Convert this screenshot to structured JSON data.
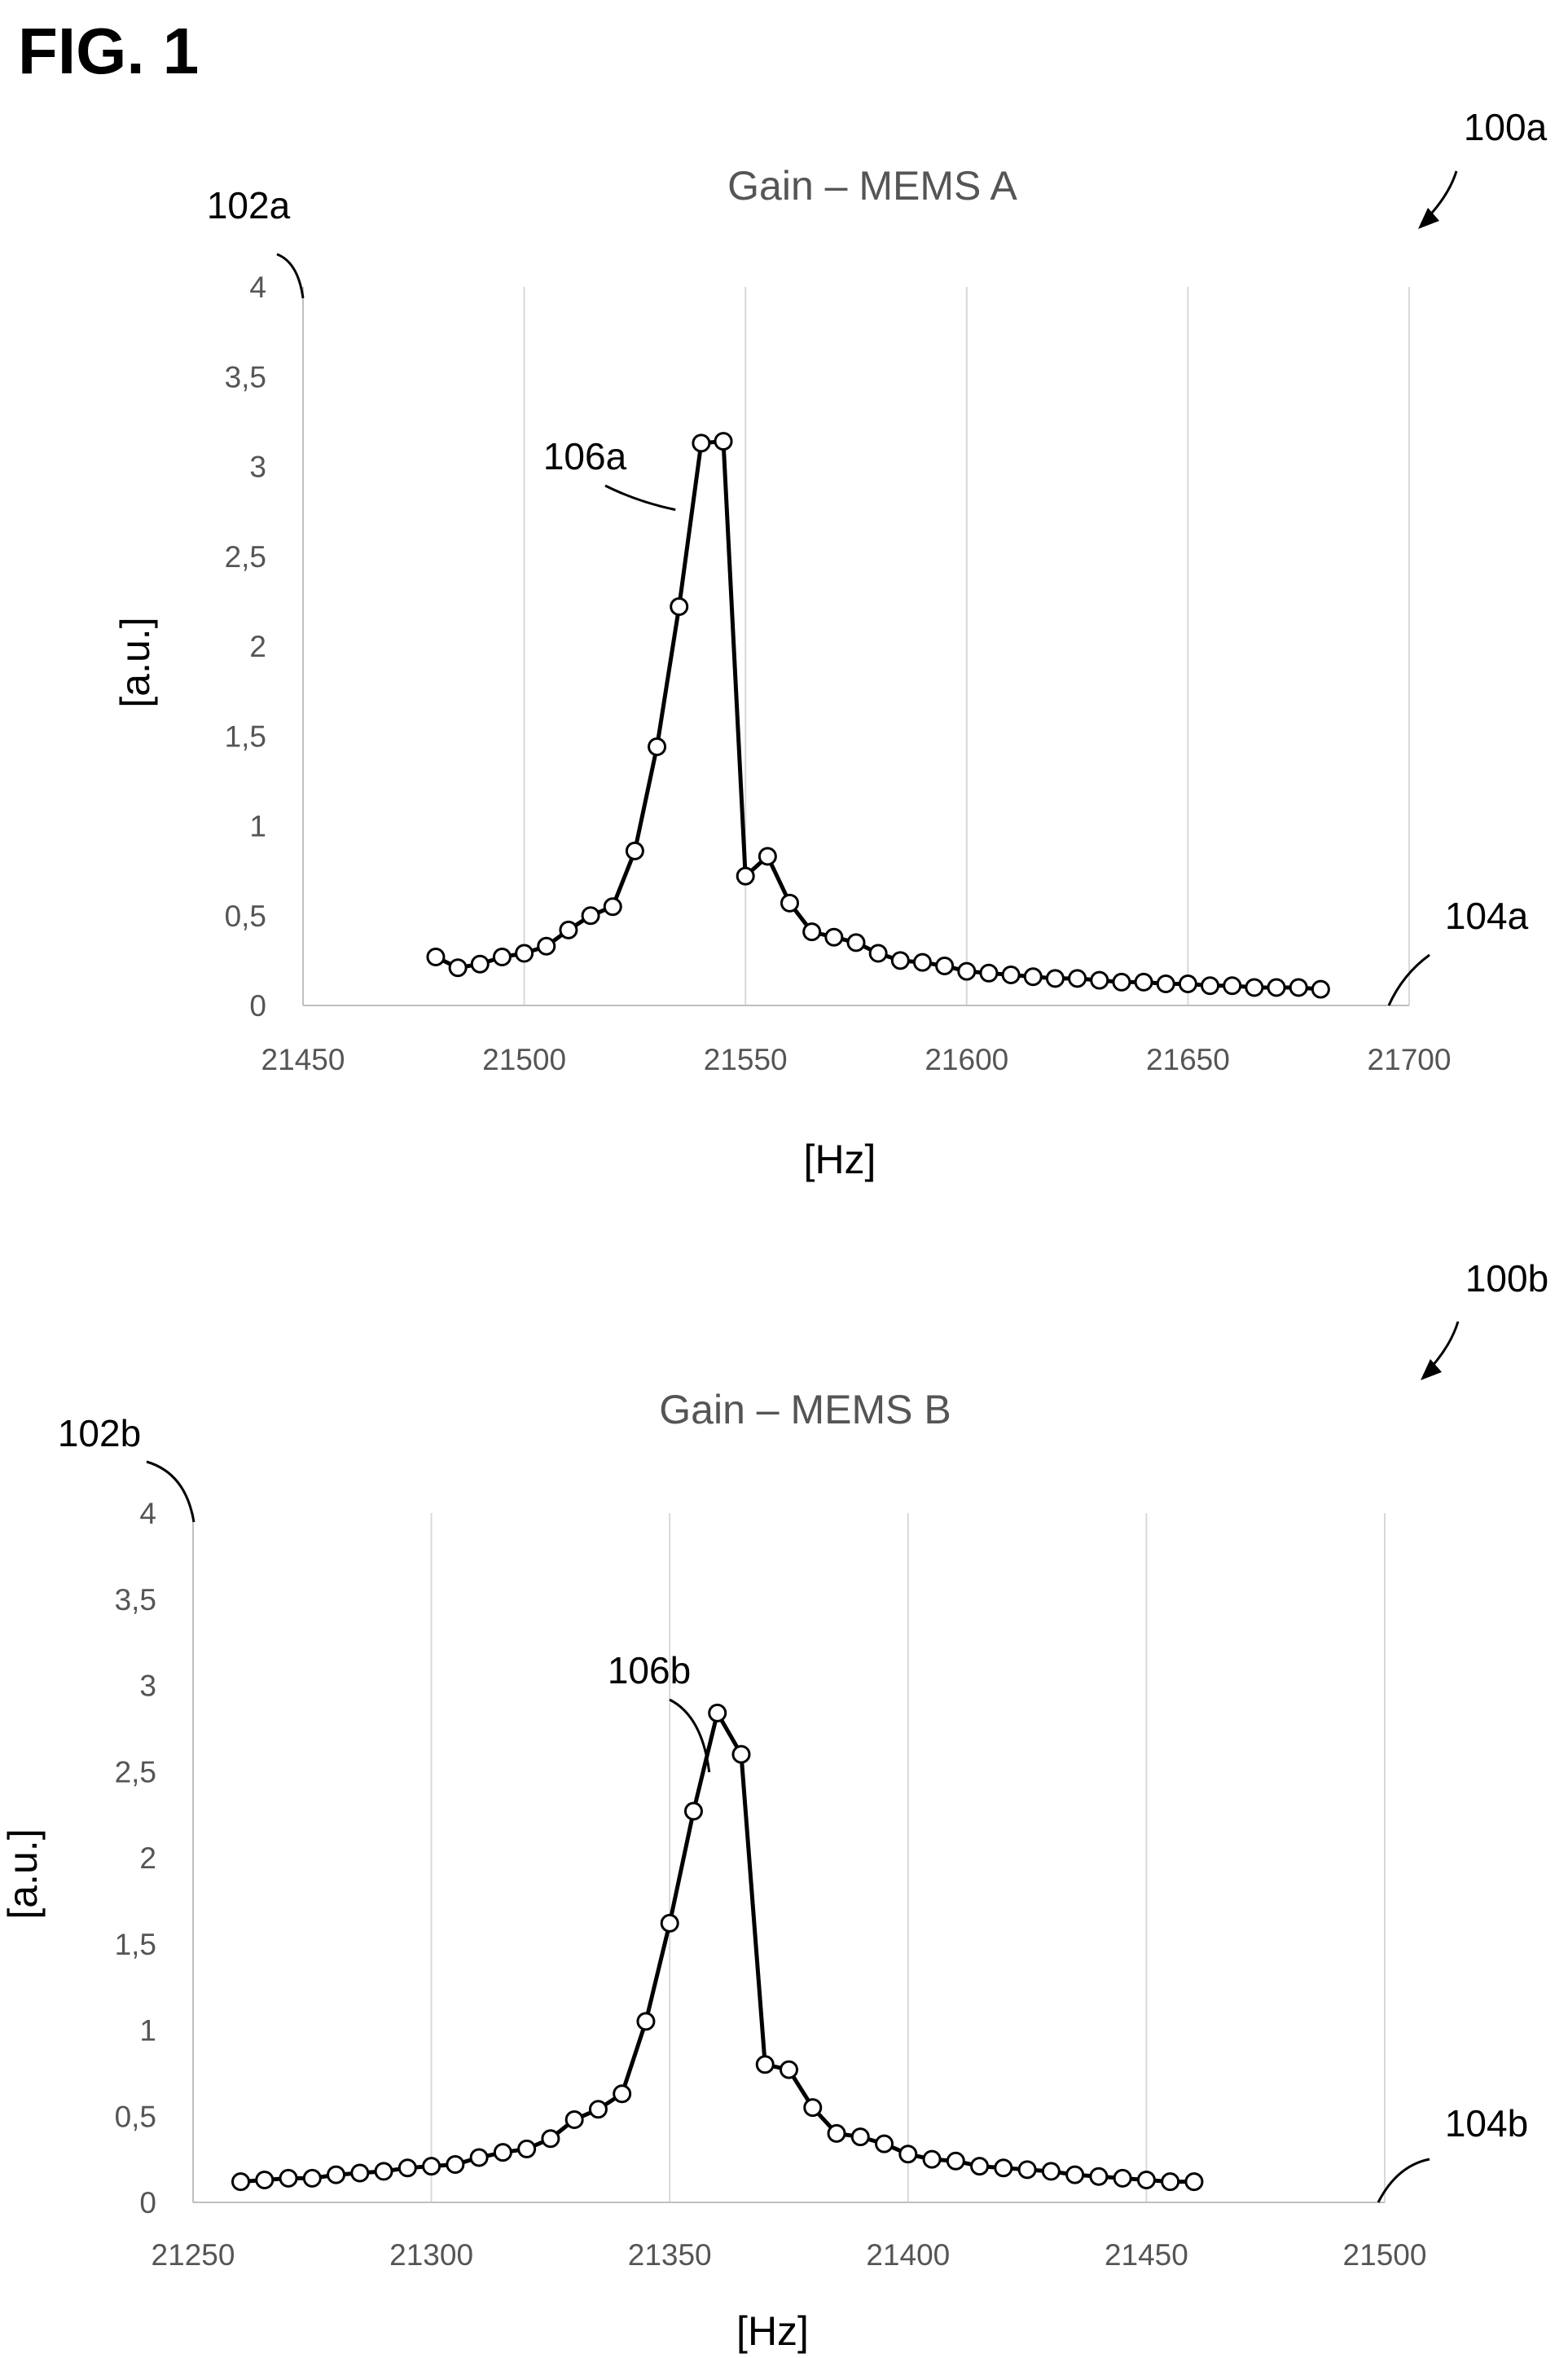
{
  "figure_label": "FIG. 1",
  "chart_data": [
    {
      "type": "line",
      "title": "Gain – MEMS A",
      "xlabel": "[Hz]",
      "ylabel": "[a.u.]",
      "xlim": [
        21450,
        21700
      ],
      "ylim": [
        0,
        4
      ],
      "x_ticks": [
        "21450",
        "21500",
        "21550",
        "21600",
        "21650",
        "21700"
      ],
      "y_ticks": [
        "0",
        "0,5",
        "1",
        "1,5",
        "2",
        "2,5",
        "3",
        "3,5",
        "4"
      ],
      "grid": "vertical",
      "marker": "open-circle",
      "refs": {
        "figure": "100a",
        "y_axis": "102a",
        "x_axis": "104a",
        "curve": "106a"
      },
      "series": [
        {
          "x": [
            21480,
            21485,
            21490,
            21495,
            21500,
            21505,
            21510,
            21515,
            21520,
            21525,
            21530,
            21535,
            21540,
            21545,
            21550,
            21555,
            21560,
            21565,
            21570,
            21575,
            21580,
            21585,
            21590,
            21595,
            21600,
            21605,
            21610,
            21615,
            21620,
            21625,
            21630,
            21635,
            21640,
            21645,
            21650,
            21655,
            21660,
            21665,
            21670,
            21675,
            21680
          ],
          "values": [
            0.27,
            0.21,
            0.23,
            0.27,
            0.29,
            0.33,
            0.42,
            0.5,
            0.55,
            0.86,
            1.44,
            2.22,
            3.13,
            3.14,
            0.72,
            0.83,
            0.57,
            0.41,
            0.38,
            0.35,
            0.29,
            0.25,
            0.24,
            0.22,
            0.19,
            0.18,
            0.17,
            0.16,
            0.15,
            0.15,
            0.14,
            0.13,
            0.13,
            0.12,
            0.12,
            0.11,
            0.11,
            0.1,
            0.1,
            0.1,
            0.09
          ]
        }
      ]
    },
    {
      "type": "line",
      "title": "Gain – MEMS B",
      "xlabel": "[Hz]",
      "ylabel": "[a.u.]",
      "xlim": [
        21250,
        21500
      ],
      "ylim": [
        0,
        4
      ],
      "x_ticks": [
        "21250",
        "21300",
        "21350",
        "21400",
        "21450",
        "21500"
      ],
      "y_ticks": [
        "0",
        "0,5",
        "1",
        "1,5",
        "2",
        "2,5",
        "3",
        "3,5",
        "4"
      ],
      "grid": "vertical",
      "marker": "open-circle",
      "refs": {
        "figure": "100b",
        "y_axis": "102b",
        "x_axis": "104b",
        "curve": "106b"
      },
      "series": [
        {
          "x": [
            21260,
            21265,
            21270,
            21275,
            21280,
            21285,
            21290,
            21295,
            21300,
            21305,
            21310,
            21315,
            21320,
            21325,
            21330,
            21335,
            21340,
            21345,
            21350,
            21355,
            21360,
            21365,
            21370,
            21375,
            21380,
            21385,
            21390,
            21395,
            21400,
            21405,
            21410,
            21415,
            21420,
            21425,
            21430,
            21435,
            21440,
            21445,
            21450,
            21455,
            21460
          ],
          "values": [
            0.12,
            0.13,
            0.14,
            0.14,
            0.16,
            0.17,
            0.18,
            0.2,
            0.21,
            0.22,
            0.26,
            0.29,
            0.31,
            0.37,
            0.48,
            0.54,
            0.63,
            1.05,
            1.62,
            2.27,
            2.84,
            2.6,
            0.8,
            0.77,
            0.55,
            0.4,
            0.38,
            0.34,
            0.28,
            0.25,
            0.24,
            0.21,
            0.2,
            0.19,
            0.18,
            0.16,
            0.15,
            0.14,
            0.13,
            0.12,
            0.12
          ]
        }
      ]
    }
  ]
}
